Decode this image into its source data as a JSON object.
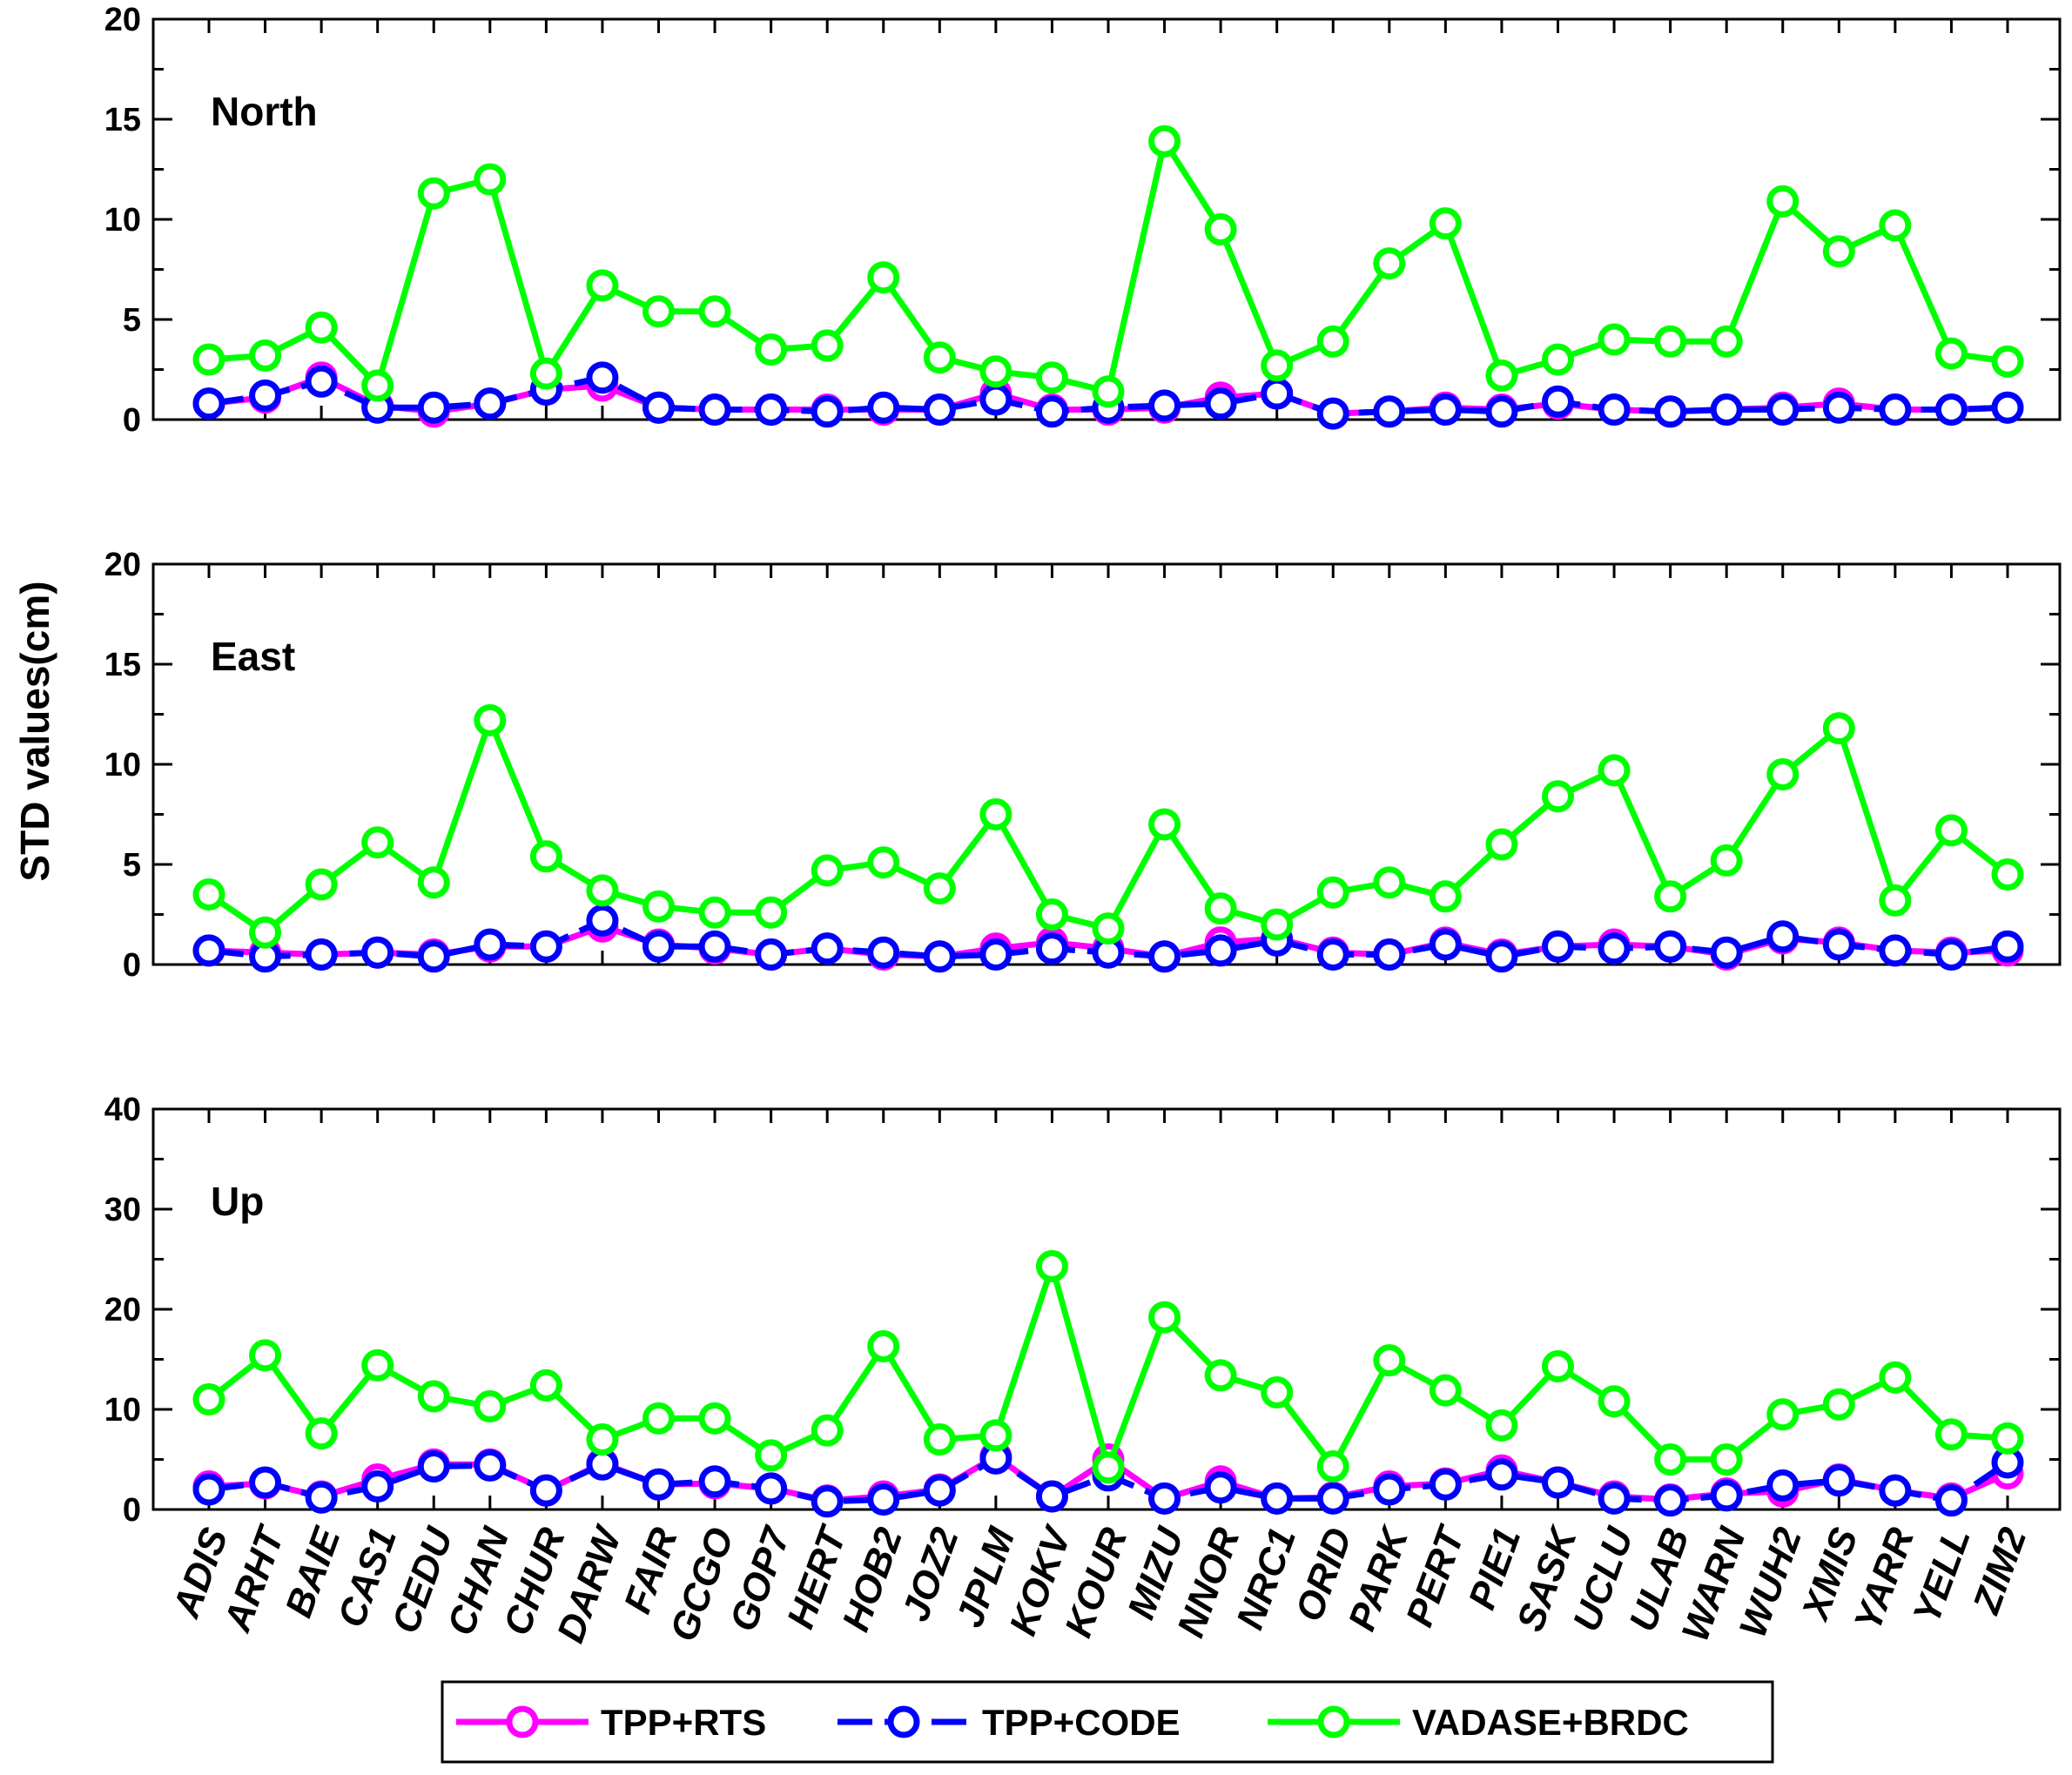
{
  "chart_data": {
    "type": "line",
    "ylabel": "STD values(cm)",
    "stations": [
      "ADIS",
      "ARHT",
      "BAIE",
      "CAS1",
      "CEDU",
      "CHAN",
      "CHUR",
      "DARW",
      "FAIR",
      "GCGO",
      "GOP7",
      "HERT",
      "HOB2",
      "JOZ2",
      "JPLM",
      "KOKV",
      "KOUR",
      "MIZU",
      "NNOR",
      "NRC1",
      "ORID",
      "PARK",
      "PERT",
      "PIE1",
      "SASK",
      "UCLU",
      "ULAB",
      "WARN",
      "WUH2",
      "XMIS",
      "YARR",
      "YELL",
      "ZIM2"
    ],
    "legend": [
      {
        "name": "TPP+RTS",
        "color": "#ff00ff",
        "dash": "solid"
      },
      {
        "name": "TPP+CODE",
        "color": "#0000ff",
        "dash": "dashed"
      },
      {
        "name": "VADASE+BRDC",
        "color": "#00ff00",
        "dash": "solid"
      }
    ],
    "panels": [
      {
        "label": "North",
        "ylim": [
          0,
          20
        ],
        "yticks": [
          "0",
          "5",
          "10",
          "15",
          "20"
        ],
        "yticks_values": [
          0,
          5,
          10,
          15,
          20
        ],
        "series": [
          {
            "name": "TPP+RTS",
            "values": [
              0.8,
              1.1,
              2.1,
              0.7,
              0.4,
              0.8,
              1.5,
              1.7,
              0.6,
              0.5,
              0.5,
              0.5,
              0.5,
              0.5,
              1.3,
              0.5,
              0.5,
              0.6,
              1.1,
              1.3,
              0.3,
              0.4,
              0.6,
              0.5,
              0.8,
              0.5,
              0.4,
              0.5,
              0.6,
              0.8,
              0.5,
              0.5,
              0.6
            ]
          },
          {
            "name": "TPP+CODE",
            "values": [
              0.8,
              1.2,
              1.9,
              0.6,
              0.6,
              0.8,
              1.5,
              2.1,
              0.6,
              0.5,
              0.5,
              0.4,
              0.6,
              0.5,
              1.0,
              0.4,
              0.6,
              0.7,
              0.8,
              1.3,
              0.3,
              0.4,
              0.5,
              0.4,
              0.9,
              0.5,
              0.4,
              0.5,
              0.5,
              0.6,
              0.5,
              0.5,
              0.6
            ]
          },
          {
            "name": "VADASE+BRDC",
            "values": [
              3.0,
              3.2,
              4.6,
              1.7,
              11.3,
              12.0,
              2.3,
              6.7,
              5.4,
              5.4,
              3.5,
              3.7,
              7.1,
              3.1,
              2.4,
              2.1,
              1.4,
              13.9,
              9.5,
              2.7,
              3.9,
              7.8,
              9.8,
              2.2,
              3.0,
              4.0,
              3.9,
              3.9,
              10.9,
              8.4,
              9.7,
              3.3,
              2.9
            ]
          }
        ]
      },
      {
        "label": "East",
        "ylim": [
          0,
          20
        ],
        "yticks": [
          "0",
          "5",
          "10",
          "15",
          "20"
        ],
        "yticks_values": [
          0,
          5,
          10,
          15,
          20
        ],
        "series": [
          {
            "name": "TPP+RTS",
            "values": [
              0.7,
              0.6,
              0.5,
              0.6,
              0.5,
              0.9,
              0.9,
              1.9,
              1.0,
              0.8,
              0.5,
              0.8,
              0.5,
              0.4,
              0.8,
              1.1,
              0.8,
              0.4,
              1.1,
              1.3,
              0.6,
              0.5,
              1.1,
              0.5,
              0.9,
              1.0,
              0.9,
              0.5,
              1.3,
              1.1,
              0.7,
              0.6,
              0.7
            ]
          },
          {
            "name": "TPP+CODE",
            "values": [
              0.7,
              0.4,
              0.5,
              0.6,
              0.4,
              1.0,
              0.9,
              2.2,
              0.9,
              0.9,
              0.5,
              0.8,
              0.6,
              0.4,
              0.5,
              0.8,
              0.6,
              0.4,
              0.7,
              1.2,
              0.5,
              0.5,
              1.0,
              0.4,
              0.9,
              0.8,
              0.9,
              0.6,
              1.4,
              1.0,
              0.7,
              0.5,
              0.9
            ]
          },
          {
            "name": "VADASE+BRDC",
            "values": [
              3.5,
              1.6,
              4.0,
              6.1,
              4.1,
              12.2,
              5.4,
              3.7,
              2.9,
              2.6,
              2.6,
              4.7,
              5.1,
              3.8,
              7.5,
              2.5,
              1.8,
              7.0,
              2.8,
              2.0,
              3.6,
              4.1,
              3.4,
              6.0,
              8.4,
              9.7,
              3.4,
              5.2,
              9.5,
              11.8,
              3.2,
              6.7,
              4.5
            ]
          }
        ]
      },
      {
        "label": "Up",
        "ylim": [
          0,
          40
        ],
        "yticks": [
          "0",
          "10",
          "20",
          "30",
          "40"
        ],
        "yticks_values": [
          0,
          10,
          20,
          30,
          40
        ],
        "series": [
          {
            "name": "TPP+RTS",
            "values": [
              2.3,
              2.6,
              1.3,
              3.0,
              4.5,
              4.5,
              1.9,
              4.6,
              2.5,
              2.6,
              2.1,
              0.9,
              1.3,
              2.0,
              5.3,
              1.3,
              5.0,
              1.1,
              2.8,
              1.1,
              1.2,
              2.3,
              2.6,
              3.9,
              2.7,
              1.3,
              1.0,
              1.6,
              1.8,
              3.0,
              1.9,
              1.1,
              3.6
            ]
          },
          {
            "name": "TPP+CODE",
            "values": [
              2.0,
              2.7,
              1.2,
              2.3,
              4.3,
              4.4,
              1.9,
              4.5,
              2.5,
              2.8,
              2.1,
              0.8,
              1.0,
              1.9,
              5.1,
              1.3,
              3.4,
              1.1,
              2.2,
              1.1,
              1.1,
              2.0,
              2.5,
              3.5,
              2.7,
              1.1,
              0.9,
              1.4,
              2.4,
              2.9,
              1.9,
              0.9,
              4.7
            ]
          },
          {
            "name": "VADASE+BRDC",
            "values": [
              11.0,
              15.4,
              7.6,
              14.4,
              11.3,
              10.3,
              12.4,
              7.0,
              9.1,
              9.1,
              5.4,
              7.9,
              16.3,
              7.0,
              7.4,
              24.3,
              4.2,
              19.2,
              13.4,
              11.7,
              4.3,
              14.9,
              11.9,
              8.4,
              14.3,
              10.8,
              5.0,
              5.0,
              9.5,
              10.5,
              13.2,
              7.5,
              7.1
            ]
          }
        ]
      }
    ]
  }
}
